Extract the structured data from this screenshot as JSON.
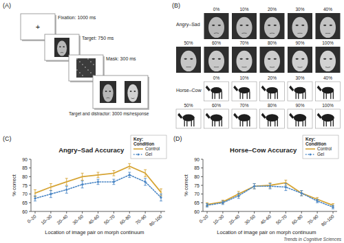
{
  "panels": {
    "A": {
      "label": "(A)",
      "fixation_symbol": "+",
      "steps": [
        "Fixation: 1000 ms",
        "Target: 750 ms",
        "Mask: 300 ms",
        "Target and distractor: 3000 ms/response"
      ]
    },
    "B": {
      "label": "(B)",
      "continua": [
        {
          "name": "Angry–Sad",
          "kind": "face",
          "levels": [
            "0%",
            "10%",
            "20%",
            "30%",
            "40%",
            "50%",
            "60%",
            "70%",
            "80%",
            "90%",
            "100%"
          ]
        },
        {
          "name": "Horse–Cow",
          "kind": "animal",
          "levels": [
            "0%",
            "10%",
            "20%",
            "30%",
            "40%",
            "50%",
            "60%",
            "70%",
            "80%",
            "90%",
            "100%"
          ]
        }
      ]
    }
  },
  "chart_data": [
    {
      "type": "line",
      "panel_label": "(C)",
      "title": "Angry–Sad Accuracy",
      "x_label": "Location of image pair on morph continuum",
      "y_label": "% correct",
      "categories": [
        "0–20",
        "10–30",
        "20–40",
        "30–50",
        "40–60",
        "50–70",
        "60–80",
        "70–90",
        "80–100"
      ],
      "ylim": [
        60,
        90
      ],
      "yticks": [
        60,
        65,
        70,
        75,
        80,
        85,
        90
      ],
      "legend": "upper right",
      "key_label": "Key:",
      "legend_title": "Condition",
      "series": [
        {
          "name": "Control",
          "color": "#d6a434",
          "line_style": "solid",
          "marker": "none",
          "values": [
            70.5,
            74,
            77,
            80,
            81,
            82,
            86,
            82,
            71
          ],
          "errors": [
            2,
            2,
            2,
            2,
            1.5,
            1.5,
            1.5,
            2,
            2
          ]
        },
        {
          "name": "Gel",
          "color": "#4a86c5",
          "line_style": "dotted",
          "marker": "circle",
          "values": [
            67.5,
            70,
            72.5,
            75.5,
            77,
            77,
            81,
            77,
            68
          ],
          "errors": [
            1.5,
            2,
            2,
            2,
            1.5,
            1.5,
            1.5,
            2,
            2
          ]
        }
      ]
    },
    {
      "type": "line",
      "panel_label": "(D)",
      "title": "Horse–Cow Accuracy",
      "x_label": "Location of image pair on morph continuum",
      "y_label": "% correct",
      "categories": [
        "0–20",
        "10–30",
        "20–40",
        "30–50",
        "40–60",
        "50–70",
        "60–80",
        "70–90",
        "80–100"
      ],
      "ylim": [
        60,
        90
      ],
      "yticks": [
        60,
        65,
        70,
        75,
        80,
        85,
        90
      ],
      "legend": "upper right",
      "key_label": "Key:",
      "legend_title": "Condition",
      "series": [
        {
          "name": "Control",
          "color": "#d6a434",
          "line_style": "solid",
          "marker": "none",
          "values": [
            64,
            65.5,
            70,
            74.5,
            75,
            76.5,
            70.5,
            67,
            63.5
          ],
          "errors": [
            1,
            1,
            1.5,
            1.5,
            1.5,
            1.5,
            1.5,
            1,
            1
          ]
        },
        {
          "name": "Gel",
          "color": "#4a86c5",
          "line_style": "dotted",
          "marker": "circle",
          "values": [
            63.5,
            65,
            69,
            74.5,
            74.5,
            74,
            70.5,
            66,
            62.5
          ],
          "errors": [
            1,
            1,
            1.5,
            1.5,
            1.5,
            2,
            1.5,
            1,
            1
          ]
        }
      ]
    }
  ],
  "footer": "Trends in Cognitive Sciences"
}
